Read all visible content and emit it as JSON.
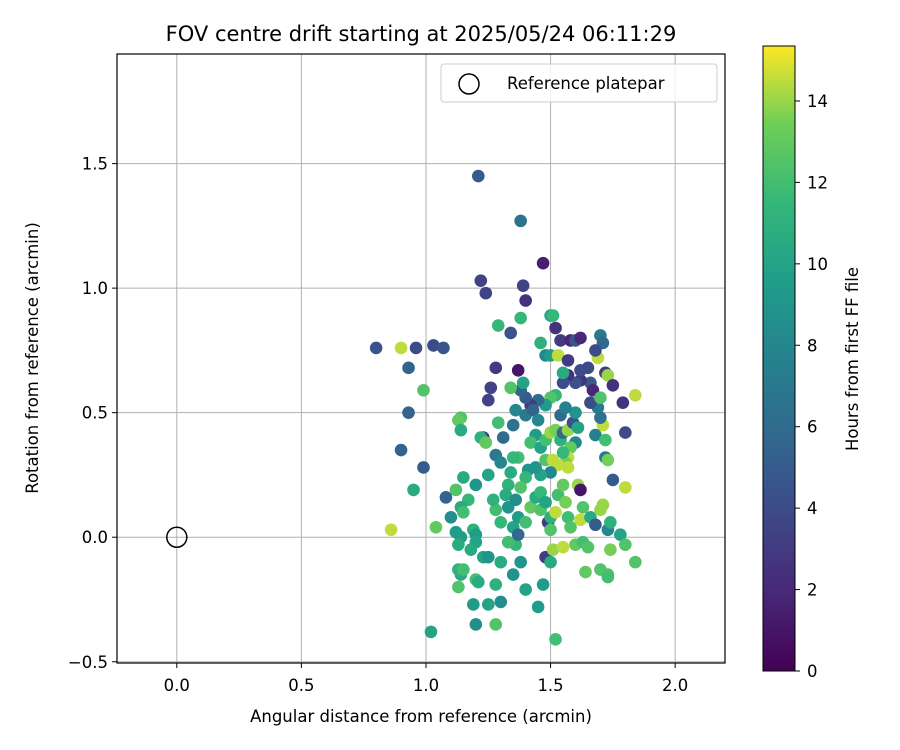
{
  "chart_data": {
    "type": "scatter",
    "title": "FOV centre drift starting at 2025/05/24 06:11:29",
    "xlabel": "Angular distance from reference (arcmin)",
    "ylabel": "Rotation from reference (arcmin)",
    "xlim": [
      -0.24,
      2.2
    ],
    "ylim": [
      -0.505,
      1.94
    ],
    "xticks": [
      0.0,
      0.5,
      1.0,
      1.5,
      2.0
    ],
    "xtick_labels": [
      "0.0",
      "0.5",
      "1.0",
      "1.5",
      "2.0"
    ],
    "yticks": [
      -0.5,
      0.0,
      0.5,
      1.0,
      1.5
    ],
    "ytick_labels": [
      "−0.5",
      "0.0",
      "0.5",
      "1.0",
      "1.5"
    ],
    "grid": true,
    "legend": {
      "position": "top-right",
      "entries": [
        "Reference platepar"
      ]
    },
    "colormap": "viridis",
    "colorbar": {
      "label": "Hours from first FF file",
      "range": [
        0,
        15.35
      ],
      "ticks": [
        0,
        2,
        4,
        6,
        8,
        10,
        12,
        14
      ],
      "tick_labels": [
        "0",
        "2",
        "4",
        "6",
        "8",
        "10",
        "12",
        "14"
      ]
    },
    "reference_point": {
      "x": 0.0,
      "y": 0.0
    },
    "series": [
      {
        "color_by": "hours",
        "points": [
          [
            1.21,
            1.45,
            5.0
          ],
          [
            1.38,
            1.27,
            6.5
          ],
          [
            1.47,
            1.1,
            1.5
          ],
          [
            1.22,
            1.03,
            3.5
          ],
          [
            1.24,
            0.98,
            3.5
          ],
          [
            1.39,
            1.01,
            3.5
          ],
          [
            1.4,
            0.95,
            2.5
          ],
          [
            1.5,
            0.89,
            10.0
          ],
          [
            1.51,
            0.89,
            11.5
          ],
          [
            1.52,
            0.84,
            2.5
          ],
          [
            1.29,
            0.85,
            11.5
          ],
          [
            1.38,
            0.88,
            11.5
          ],
          [
            1.34,
            0.82,
            4.5
          ],
          [
            1.46,
            0.78,
            11.0
          ],
          [
            1.48,
            0.73,
            8.0
          ],
          [
            1.5,
            0.73,
            9.5
          ],
          [
            1.53,
            0.73,
            14.5
          ],
          [
            1.54,
            0.79,
            3.0
          ],
          [
            1.58,
            0.79,
            2.0
          ],
          [
            1.6,
            0.79,
            4.5
          ],
          [
            1.62,
            0.8,
            2.0
          ],
          [
            1.7,
            0.81,
            7.0
          ],
          [
            1.71,
            0.78,
            6.0
          ],
          [
            1.69,
            0.72,
            14.5
          ],
          [
            1.68,
            0.75,
            4.0
          ],
          [
            1.65,
            0.68,
            4.0
          ],
          [
            1.72,
            0.66,
            3.0
          ],
          [
            1.73,
            0.65,
            14.0
          ],
          [
            1.75,
            0.61,
            2.5
          ],
          [
            1.79,
            0.54,
            2.5
          ],
          [
            1.84,
            0.57,
            14.5
          ],
          [
            1.8,
            0.42,
            4.0
          ],
          [
            0.8,
            0.76,
            4.5
          ],
          [
            0.9,
            0.76,
            14.5
          ],
          [
            0.96,
            0.76,
            4.0
          ],
          [
            1.03,
            0.77,
            4.0
          ],
          [
            1.07,
            0.76,
            4.5
          ],
          [
            0.93,
            0.68,
            5.5
          ],
          [
            0.99,
            0.59,
            12.5
          ],
          [
            0.93,
            0.5,
            5.5
          ],
          [
            0.9,
            0.35,
            5.5
          ],
          [
            0.95,
            0.19,
            10.5
          ],
          [
            0.99,
            0.28,
            5.0
          ],
          [
            0.86,
            0.03,
            14.5
          ],
          [
            1.04,
            0.04,
            13.0
          ],
          [
            1.08,
            0.16,
            5.5
          ],
          [
            1.14,
            0.48,
            12.5
          ],
          [
            1.13,
            0.47,
            13.0
          ],
          [
            1.14,
            0.43,
            10.5
          ],
          [
            1.26,
            0.6,
            3.5
          ],
          [
            1.28,
            0.68,
            3.0
          ],
          [
            1.25,
            0.55,
            3.5
          ],
          [
            1.29,
            0.46,
            12.0
          ],
          [
            1.31,
            0.4,
            6.0
          ],
          [
            1.23,
            0.4,
            2.5
          ],
          [
            1.22,
            0.4,
            11.0
          ],
          [
            1.24,
            0.38,
            13.0
          ],
          [
            1.28,
            0.33,
            7.0
          ],
          [
            1.3,
            0.3,
            8.0
          ],
          [
            1.25,
            0.25,
            10.0
          ],
          [
            1.2,
            0.21,
            9.0
          ],
          [
            1.17,
            0.15,
            11.5
          ],
          [
            1.14,
            0.12,
            10.5
          ],
          [
            1.15,
            0.24,
            10.5
          ],
          [
            1.12,
            0.19,
            12.5
          ],
          [
            1.15,
            0.1,
            12.0
          ],
          [
            1.1,
            0.08,
            8.5
          ],
          [
            1.12,
            0.02,
            9.5
          ],
          [
            1.14,
            0.0,
            9.5
          ],
          [
            1.13,
            -0.03,
            10.5
          ],
          [
            1.19,
            0.03,
            11.0
          ],
          [
            1.2,
            0.01,
            9.5
          ],
          [
            1.2,
            -0.02,
            10.0
          ],
          [
            1.23,
            -0.08,
            10.0
          ],
          [
            1.25,
            -0.08,
            9.0
          ],
          [
            1.18,
            -0.05,
            10.5
          ],
          [
            1.14,
            -0.15,
            10.5
          ],
          [
            1.13,
            -0.13,
            11.0
          ],
          [
            1.15,
            -0.13,
            12.0
          ],
          [
            1.13,
            -0.2,
            12.5
          ],
          [
            1.2,
            -0.17,
            12.0
          ],
          [
            1.21,
            -0.18,
            10.5
          ],
          [
            1.19,
            -0.27,
            9.5
          ],
          [
            1.25,
            -0.27,
            10.0
          ],
          [
            1.2,
            -0.35,
            8.5
          ],
          [
            1.28,
            -0.35,
            12.5
          ],
          [
            1.02,
            -0.38,
            10.0
          ],
          [
            1.3,
            -0.26,
            8.5
          ],
          [
            1.28,
            -0.19,
            11.0
          ],
          [
            1.3,
            -0.1,
            10.5
          ],
          [
            1.35,
            -0.15,
            9.0
          ],
          [
            1.36,
            -0.03,
            11.5
          ],
          [
            1.38,
            -0.1,
            9.0
          ],
          [
            1.4,
            -0.21,
            10.0
          ],
          [
            1.45,
            -0.28,
            9.5
          ],
          [
            1.47,
            -0.19,
            9.5
          ],
          [
            1.48,
            -0.08,
            3.0
          ],
          [
            1.5,
            -0.1,
            10.5
          ],
          [
            1.51,
            -0.05,
            14.0
          ],
          [
            1.52,
            -0.41,
            12.0
          ],
          [
            1.55,
            -0.04,
            14.5
          ],
          [
            1.6,
            -0.03,
            13.0
          ],
          [
            1.63,
            -0.02,
            12.0
          ],
          [
            1.64,
            -0.14,
            13.0
          ],
          [
            1.65,
            -0.04,
            12.5
          ],
          [
            1.7,
            -0.13,
            12.5
          ],
          [
            1.73,
            -0.15,
            12.5
          ],
          [
            1.73,
            -0.16,
            12.0
          ],
          [
            1.74,
            -0.05,
            13.5
          ],
          [
            1.78,
            0.01,
            10.0
          ],
          [
            1.8,
            -0.03,
            12.5
          ],
          [
            1.84,
            -0.1,
            12.5
          ],
          [
            1.8,
            0.2,
            14.5
          ],
          [
            1.75,
            0.23,
            5.0
          ],
          [
            1.72,
            0.32,
            7.0
          ],
          [
            1.73,
            0.31,
            13.5
          ],
          [
            1.71,
            0.45,
            14.5
          ],
          [
            1.7,
            0.48,
            6.5
          ],
          [
            1.68,
            0.41,
            7.5
          ],
          [
            1.69,
            0.52,
            7.0
          ],
          [
            1.66,
            0.54,
            4.0
          ],
          [
            1.66,
            0.62,
            5.0
          ],
          [
            1.67,
            0.59,
            2.0
          ],
          [
            1.62,
            0.63,
            2.5
          ],
          [
            1.6,
            0.62,
            4.5
          ],
          [
            1.57,
            0.65,
            2.5
          ],
          [
            1.55,
            0.62,
            4.0
          ],
          [
            1.57,
            0.71,
            3.0
          ],
          [
            1.55,
            0.66,
            10.5
          ],
          [
            1.52,
            0.57,
            11.5
          ],
          [
            1.5,
            0.56,
            12.5
          ],
          [
            1.48,
            0.53,
            9.5
          ],
          [
            1.45,
            0.55,
            6.0
          ],
          [
            1.42,
            0.53,
            3.0
          ],
          [
            1.4,
            0.56,
            5.0
          ],
          [
            1.38,
            0.59,
            5.5
          ],
          [
            1.39,
            0.62,
            10.0
          ],
          [
            1.37,
            0.67,
            1.0
          ],
          [
            1.34,
            0.6,
            12.5
          ],
          [
            1.36,
            0.51,
            8.0
          ],
          [
            1.35,
            0.45,
            6.5
          ],
          [
            1.4,
            0.49,
            7.0
          ],
          [
            1.43,
            0.51,
            5.5
          ],
          [
            1.45,
            0.47,
            8.0
          ],
          [
            1.44,
            0.41,
            9.5
          ],
          [
            1.42,
            0.38,
            12.0
          ],
          [
            1.46,
            0.36,
            10.0
          ],
          [
            1.48,
            0.31,
            12.5
          ],
          [
            1.48,
            0.39,
            12.0
          ],
          [
            1.5,
            0.42,
            14.0
          ],
          [
            1.52,
            0.43,
            13.5
          ],
          [
            1.54,
            0.39,
            11.0
          ],
          [
            1.55,
            0.42,
            6.0
          ],
          [
            1.57,
            0.43,
            14.0
          ],
          [
            1.59,
            0.46,
            4.5
          ],
          [
            1.6,
            0.5,
            9.0
          ],
          [
            1.61,
            0.44,
            10.0
          ],
          [
            1.6,
            0.38,
            8.0
          ],
          [
            1.58,
            0.36,
            13.0
          ],
          [
            1.57,
            0.32,
            14.5
          ],
          [
            1.56,
            0.3,
            13.5
          ],
          [
            1.53,
            0.29,
            14.5
          ],
          [
            1.55,
            0.34,
            11.5
          ],
          [
            1.51,
            0.31,
            14.5
          ],
          [
            1.5,
            0.26,
            8.0
          ],
          [
            1.46,
            0.25,
            10.0
          ],
          [
            1.44,
            0.28,
            9.0
          ],
          [
            1.41,
            0.27,
            9.0
          ],
          [
            1.4,
            0.24,
            11.5
          ],
          [
            1.38,
            0.2,
            12.5
          ],
          [
            1.37,
            0.32,
            12.0
          ],
          [
            1.35,
            0.32,
            11.5
          ],
          [
            1.34,
            0.26,
            10.5
          ],
          [
            1.33,
            0.21,
            11.0
          ],
          [
            1.32,
            0.17,
            10.5
          ],
          [
            1.33,
            0.12,
            9.0
          ],
          [
            1.36,
            0.15,
            8.5
          ],
          [
            1.37,
            0.08,
            9.5
          ],
          [
            1.35,
            0.04,
            10.0
          ],
          [
            1.37,
            0.01,
            6.0
          ],
          [
            1.33,
            -0.02,
            12.0
          ],
          [
            1.3,
            0.06,
            11.5
          ],
          [
            1.28,
            0.11,
            12.0
          ],
          [
            1.27,
            0.15,
            11.0
          ],
          [
            1.4,
            0.06,
            12.0
          ],
          [
            1.42,
            0.12,
            13.0
          ],
          [
            1.44,
            0.16,
            10.5
          ],
          [
            1.46,
            0.18,
            11.5
          ],
          [
            1.46,
            0.11,
            12.5
          ],
          [
            1.48,
            0.14,
            10.0
          ],
          [
            1.49,
            0.06,
            3.0
          ],
          [
            1.5,
            0.08,
            11.0
          ],
          [
            1.5,
            0.03,
            12.5
          ],
          [
            1.52,
            0.1,
            14.5
          ],
          [
            1.53,
            0.17,
            12.0
          ],
          [
            1.55,
            0.21,
            13.0
          ],
          [
            1.56,
            0.14,
            13.5
          ],
          [
            1.57,
            0.08,
            12.0
          ],
          [
            1.58,
            0.04,
            12.5
          ],
          [
            1.61,
            0.21,
            14.0
          ],
          [
            1.62,
            0.19,
            1.0
          ],
          [
            1.63,
            0.12,
            12.5
          ],
          [
            1.62,
            0.07,
            14.5
          ],
          [
            1.66,
            0.08,
            10.5
          ],
          [
            1.68,
            0.05,
            5.0
          ],
          [
            1.7,
            0.11,
            14.0
          ],
          [
            1.71,
            0.13,
            14.0
          ],
          [
            1.73,
            0.03,
            8.0
          ],
          [
            1.74,
            0.06,
            11.0
          ],
          [
            1.7,
            0.56,
            12.5
          ],
          [
            1.72,
            0.39,
            12.0
          ],
          [
            1.62,
            0.67,
            4.0
          ],
          [
            1.57,
            0.28,
            14.5
          ],
          [
            1.54,
            0.49,
            6.0
          ],
          [
            1.56,
            0.52,
            7.5
          ]
        ]
      }
    ]
  }
}
